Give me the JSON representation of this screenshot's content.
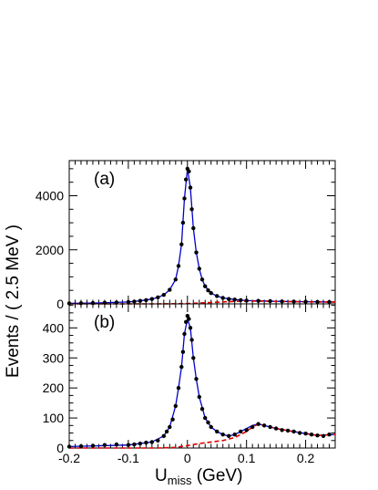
{
  "colors": {
    "fit": "#0000cc",
    "background": "#dd0000",
    "data": "#000000",
    "frame": "#000000"
  },
  "figure": {
    "ylabel": "Events / ( 2.5 MeV )",
    "xlabel_main": "U",
    "xlabel_sub": "miss",
    "xlabel_unit": " (GeV)"
  },
  "chart_data": [
    {
      "type": "scatter",
      "panel_label": "(a)",
      "xlim": [
        -0.2,
        0.25
      ],
      "ylim": [
        0,
        5300
      ],
      "yticks": [
        "0",
        "2000",
        "4000"
      ],
      "ytick_values": [
        0,
        2000,
        4000
      ],
      "xticks": [
        "-0.2",
        "-0.1",
        "0",
        "0.1",
        "0.2"
      ],
      "xtick_values": [
        -0.2,
        -0.1,
        0,
        0.1,
        0.2
      ],
      "series": [
        {
          "kind": "data-points",
          "x": [
            -0.2,
            -0.18,
            -0.16,
            -0.14,
            -0.12,
            -0.1,
            -0.09,
            -0.08,
            -0.07,
            -0.06,
            -0.05,
            -0.04,
            -0.03,
            -0.02,
            -0.015,
            -0.01,
            -0.0075,
            -0.005,
            -0.0025,
            0,
            0.0025,
            0.005,
            0.0075,
            0.01,
            0.015,
            0.02,
            0.025,
            0.03,
            0.035,
            0.04,
            0.05,
            0.06,
            0.07,
            0.08,
            0.09,
            0.1,
            0.12,
            0.14,
            0.16,
            0.18,
            0.2,
            0.22,
            0.24
          ],
          "y": [
            20,
            25,
            30,
            40,
            50,
            70,
            85,
            110,
            140,
            180,
            240,
            330,
            520,
            900,
            1400,
            2200,
            3000,
            3900,
            4600,
            5000,
            4900,
            4300,
            3500,
            2800,
            1900,
            1300,
            900,
            650,
            500,
            400,
            290,
            220,
            180,
            160,
            140,
            120,
            110,
            100,
            90,
            85,
            80,
            75,
            70
          ]
        },
        {
          "kind": "fit-curve",
          "x": [
            -0.2,
            -0.15,
            -0.1,
            -0.08,
            -0.06,
            -0.05,
            -0.04,
            -0.03,
            -0.02,
            -0.015,
            -0.01,
            -0.005,
            0,
            0.005,
            0.01,
            0.015,
            0.02,
            0.025,
            0.03,
            0.04,
            0.05,
            0.06,
            0.08,
            0.1,
            0.12,
            0.15,
            0.2,
            0.25
          ],
          "y": [
            20,
            35,
            70,
            110,
            180,
            240,
            330,
            520,
            900,
            1400,
            2200,
            3900,
            5000,
            4300,
            2800,
            1900,
            1300,
            900,
            650,
            400,
            290,
            220,
            160,
            120,
            110,
            95,
            80,
            70
          ]
        },
        {
          "kind": "background-curve",
          "x": [
            -0.2,
            -0.1,
            -0.05,
            0,
            0.02,
            0.05,
            0.08,
            0.1,
            0.12,
            0.15,
            0.2,
            0.25
          ],
          "y": [
            0,
            0,
            0,
            10,
            30,
            60,
            90,
            100,
            100,
            90,
            75,
            65
          ]
        }
      ]
    },
    {
      "type": "scatter",
      "panel_label": "(b)",
      "xlim": [
        -0.2,
        0.25
      ],
      "ylim": [
        0,
        480
      ],
      "yticks": [
        "0",
        "100",
        "200",
        "300",
        "400"
      ],
      "ytick_values": [
        0,
        100,
        200,
        300,
        400
      ],
      "xticks": [
        "-0.2",
        "-0.1",
        "0",
        "0.1",
        "0.2"
      ],
      "xtick_values": [
        -0.2,
        -0.1,
        0,
        0.1,
        0.2
      ],
      "series": [
        {
          "kind": "data-points",
          "x": [
            -0.2,
            -0.18,
            -0.16,
            -0.14,
            -0.12,
            -0.1,
            -0.09,
            -0.08,
            -0.07,
            -0.06,
            -0.05,
            -0.04,
            -0.035,
            -0.03,
            -0.025,
            -0.02,
            -0.015,
            -0.01,
            -0.0075,
            -0.005,
            -0.0025,
            0,
            0.0025,
            0.005,
            0.0075,
            0.01,
            0.015,
            0.02,
            0.025,
            0.03,
            0.035,
            0.04,
            0.05,
            0.06,
            0.07,
            0.08,
            0.09,
            0.1,
            0.11,
            0.12,
            0.13,
            0.14,
            0.15,
            0.16,
            0.17,
            0.18,
            0.19,
            0.2,
            0.21,
            0.22,
            0.23,
            0.24
          ],
          "y": [
            5,
            6,
            8,
            10,
            12,
            10,
            12,
            15,
            18,
            20,
            25,
            40,
            55,
            70,
            95,
            140,
            200,
            270,
            320,
            380,
            420,
            440,
            430,
            400,
            360,
            300,
            230,
            170,
            130,
            100,
            85,
            70,
            55,
            45,
            40,
            45,
            55,
            60,
            70,
            80,
            75,
            70,
            65,
            60,
            58,
            55,
            50,
            48,
            45,
            42,
            40,
            45
          ]
        },
        {
          "kind": "fit-curve",
          "x": [
            -0.2,
            -0.1,
            -0.06,
            -0.04,
            -0.03,
            -0.02,
            -0.015,
            -0.01,
            -0.005,
            0,
            0.005,
            0.01,
            0.015,
            0.02,
            0.03,
            0.04,
            0.05,
            0.06,
            0.07,
            0.08,
            0.09,
            0.1,
            0.11,
            0.12,
            0.13,
            0.15,
            0.17,
            0.2,
            0.22,
            0.25
          ],
          "y": [
            5,
            10,
            20,
            40,
            70,
            140,
            200,
            270,
            380,
            430,
            400,
            300,
            230,
            170,
            100,
            70,
            55,
            45,
            40,
            45,
            55,
            65,
            75,
            80,
            75,
            65,
            58,
            48,
            42,
            45
          ]
        },
        {
          "kind": "background-curve",
          "x": [
            -0.2,
            -0.1,
            -0.05,
            -0.02,
            0,
            0.02,
            0.04,
            0.06,
            0.08,
            0.1,
            0.11,
            0.12,
            0.13,
            0.15,
            0.17,
            0.2,
            0.22,
            0.25
          ],
          "y": [
            0,
            0,
            0,
            2,
            8,
            15,
            20,
            25,
            35,
            55,
            70,
            80,
            75,
            65,
            58,
            48,
            42,
            45
          ]
        }
      ]
    }
  ]
}
